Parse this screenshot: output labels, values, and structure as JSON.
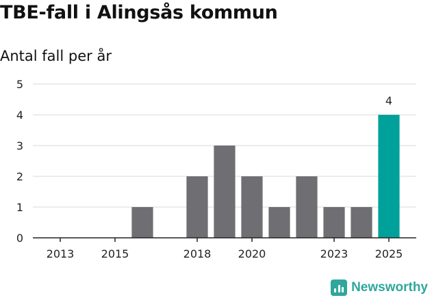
{
  "chart_data": {
    "type": "bar",
    "title": "TBE-fall i Alingsås kommun",
    "subtitle": "Antal fall per år",
    "x": [
      2016,
      2018,
      2019,
      2020,
      2021,
      2022,
      2023,
      2024,
      2025
    ],
    "values": [
      1,
      2,
      3,
      2,
      1,
      2,
      1,
      1,
      4
    ],
    "x_ticks": [
      2013,
      2015,
      2018,
      2020,
      2023,
      2025
    ],
    "xlim": [
      2012,
      2026
    ],
    "ylim": [
      0,
      5
    ],
    "y_ticks": [
      0,
      1,
      2,
      3,
      4,
      5
    ],
    "highlight_x": 2025,
    "data_labels": [
      {
        "x": 2025,
        "text": "4"
      }
    ],
    "grid": true,
    "colors": {
      "bar": "#6e6e73",
      "highlight": "#00a19a",
      "grid": "#d9d9d9",
      "axis": "#222222"
    }
  },
  "brand": {
    "name": "Newsworthy",
    "icon": "newsworthy-logo-icon",
    "color": "#2fa79c"
  }
}
